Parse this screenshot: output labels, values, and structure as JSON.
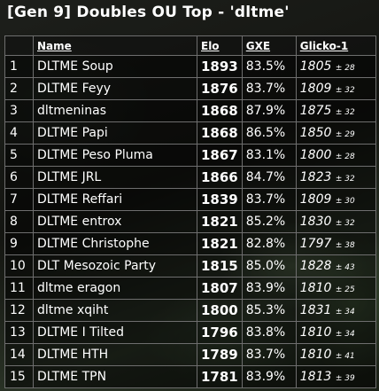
{
  "page": {
    "title": "[Gen 9] Doubles OU Top - 'dltme'"
  },
  "table": {
    "headers": {
      "rank": "",
      "name": "Name",
      "elo": "Elo",
      "gxe": "GXE",
      "glicko": "Glicko-1"
    },
    "rows": [
      {
        "rank": "1",
        "name": "DLTME Soup",
        "elo": "1893",
        "gxe": "83.5%",
        "glicko": "1805",
        "glicko_dev": "± 28"
      },
      {
        "rank": "2",
        "name": "DLTME Feyy",
        "elo": "1876",
        "gxe": "83.7%",
        "glicko": "1809",
        "glicko_dev": "± 32"
      },
      {
        "rank": "3",
        "name": "dltmeninas",
        "elo": "1868",
        "gxe": "87.9%",
        "glicko": "1875",
        "glicko_dev": "± 32"
      },
      {
        "rank": "4",
        "name": "DLTME Papi",
        "elo": "1868",
        "gxe": "86.5%",
        "glicko": "1850",
        "glicko_dev": "± 29"
      },
      {
        "rank": "5",
        "name": "DLTME Peso Pluma",
        "elo": "1867",
        "gxe": "83.1%",
        "glicko": "1800",
        "glicko_dev": "± 28"
      },
      {
        "rank": "6",
        "name": "DLTME JRL",
        "elo": "1866",
        "gxe": "84.7%",
        "glicko": "1823",
        "glicko_dev": "± 32"
      },
      {
        "rank": "7",
        "name": "DLTME Reffari",
        "elo": "1839",
        "gxe": "83.7%",
        "glicko": "1809",
        "glicko_dev": "± 30"
      },
      {
        "rank": "8",
        "name": "DLTME entrox",
        "elo": "1821",
        "gxe": "85.2%",
        "glicko": "1830",
        "glicko_dev": "± 32"
      },
      {
        "rank": "9",
        "name": "DLTME Christophe",
        "elo": "1821",
        "gxe": "82.8%",
        "glicko": "1797",
        "glicko_dev": "± 38"
      },
      {
        "rank": "10",
        "name": "DLT Mesozoic Party",
        "elo": "1815",
        "gxe": "85.0%",
        "glicko": "1828",
        "glicko_dev": "± 43"
      },
      {
        "rank": "11",
        "name": "dltme eragon",
        "elo": "1807",
        "gxe": "83.9%",
        "glicko": "1810",
        "glicko_dev": "± 25"
      },
      {
        "rank": "12",
        "name": "dltme xqiht",
        "elo": "1800",
        "gxe": "85.3%",
        "glicko": "1831",
        "glicko_dev": "± 34"
      },
      {
        "rank": "13",
        "name": "DLTME I Tilted",
        "elo": "1796",
        "gxe": "83.8%",
        "glicko": "1810",
        "glicko_dev": "± 34"
      },
      {
        "rank": "14",
        "name": "DLTME HTH",
        "elo": "1789",
        "gxe": "83.7%",
        "glicko": "1810",
        "glicko_dev": "± 41"
      },
      {
        "rank": "15",
        "name": "DLTME TPN",
        "elo": "1781",
        "gxe": "83.9%",
        "glicko": "1813",
        "glicko_dev": "± 39"
      }
    ]
  }
}
